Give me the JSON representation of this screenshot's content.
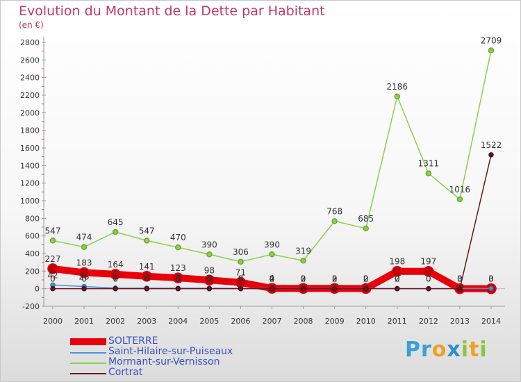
{
  "title": "Evolution du Montant de la Dette par Habitant",
  "subtitle": "(en €)",
  "brand": {
    "text": "Proxiti",
    "letters": [
      {
        "ch": "P",
        "color": "#3aa0d8"
      },
      {
        "ch": "r",
        "color": "#3aa0d8"
      },
      {
        "ch": "o",
        "color": "#f0a020"
      },
      {
        "ch": "x",
        "color": "#2e8fd0"
      },
      {
        "ch": "i",
        "color": "#8cc63f"
      },
      {
        "ch": "t",
        "color": "#f0a020"
      },
      {
        "ch": "i",
        "color": "#8cc63f"
      }
    ]
  },
  "chart_data": {
    "type": "line",
    "title": "Evolution du Montant de la Dette par Habitant",
    "subtitle": "(en €)",
    "x": [
      "2000",
      "2001",
      "2002",
      "2003",
      "2004",
      "2005",
      "2006",
      "2007",
      "2008",
      "2009",
      "2010",
      "2011",
      "2012",
      "2013",
      "2014"
    ],
    "ylim": [
      -200,
      2800
    ],
    "yticks": [
      -200,
      0,
      200,
      400,
      600,
      800,
      1000,
      1200,
      1400,
      1600,
      1800,
      2000,
      2200,
      2400,
      2600,
      2800
    ],
    "grid": false,
    "legend_position": "bottom-left",
    "series": [
      {
        "name": "SOLTERRE",
        "color": "#e8000b",
        "values": [
          227,
          183,
          164,
          141,
          123,
          98,
          71,
          4,
          3,
          3,
          2,
          198,
          197,
          0,
          0
        ],
        "labels": [
          "227",
          "183",
          "164",
          "141",
          "123",
          "98",
          "71",
          "4",
          "3",
          "3",
          "2",
          "198",
          "197",
          "0",
          "0"
        ]
      },
      {
        "name": "Saint-Hilaire-sur-Puiseaux",
        "color": "#4a90d8",
        "values": [
          42,
          25,
          7,
          6,
          5,
          5,
          3,
          2,
          2,
          2,
          2,
          2,
          0,
          3,
          3
        ],
        "labels": [
          "42",
          "25",
          "7",
          "6",
          "5",
          "5",
          "3",
          "2",
          "2",
          "2",
          "2",
          "2",
          "0",
          "3",
          "3"
        ]
      },
      {
        "name": "Mormant-sur-Vernisson",
        "color": "#8cd048",
        "values": [
          547,
          474,
          645,
          547,
          470,
          390,
          306,
          390,
          319,
          768,
          685,
          2186,
          1311,
          1016,
          2709
        ],
        "labels": [
          "547",
          "474",
          "645",
          "547",
          "470",
          "390",
          "306",
          "390",
          "319",
          "768",
          "685",
          "2186",
          "1311",
          "1016",
          "2709"
        ]
      },
      {
        "name": "Cortrat",
        "color": "#6b1520",
        "values": [
          0,
          0,
          0,
          0,
          0,
          0,
          0,
          0,
          0,
          0,
          0,
          0,
          0,
          0,
          1522
        ],
        "labels": [
          "0",
          "0",
          "0",
          "0",
          "0",
          "0",
          "0",
          "0",
          "0",
          "0",
          "0",
          "0",
          "0",
          "0",
          "1522"
        ]
      }
    ]
  }
}
